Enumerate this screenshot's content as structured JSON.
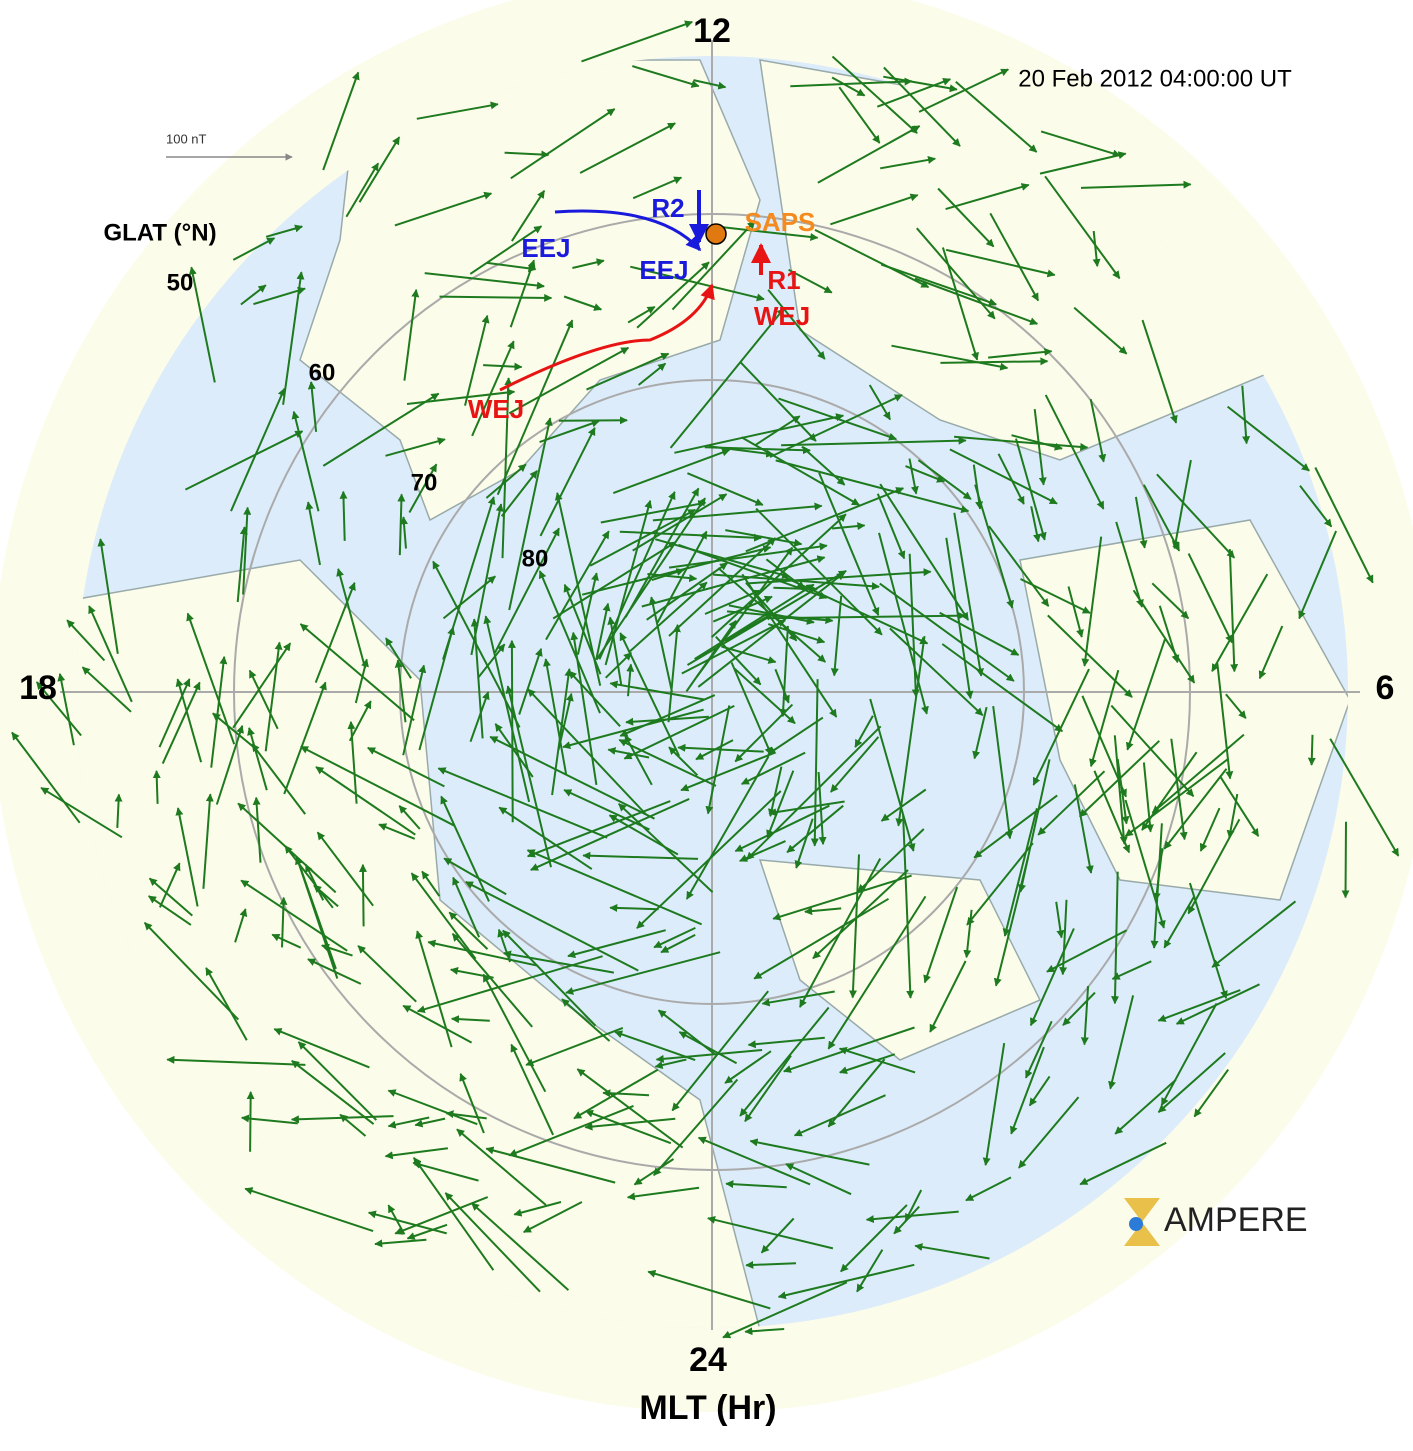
{
  "timestamp": "20  Feb  2012  04:00:00  UT",
  "scale_label": "100 nT",
  "lat_axis": {
    "title": "GLAT (°N)",
    "labels": [
      "50",
      "60",
      "70",
      "80"
    ]
  },
  "mlt_axis": {
    "title": "MLT (Hr)",
    "top": "12",
    "left": "18",
    "right": "6",
    "bottom": "24"
  },
  "annotations": [
    {
      "text": "R2",
      "color": "#1a1adc"
    },
    {
      "text": "EEJ",
      "color": "#1a1adc"
    },
    {
      "text": "EEJ",
      "color": "#1a1adc"
    },
    {
      "text": "SAPS",
      "color": "#f58a1f"
    },
    {
      "text": "R1",
      "color": "#e81414"
    },
    {
      "text": "WEJ",
      "color": "#e81414"
    },
    {
      "text": "WEJ",
      "color": "#e81414"
    }
  ],
  "logo": "AMPERE"
}
